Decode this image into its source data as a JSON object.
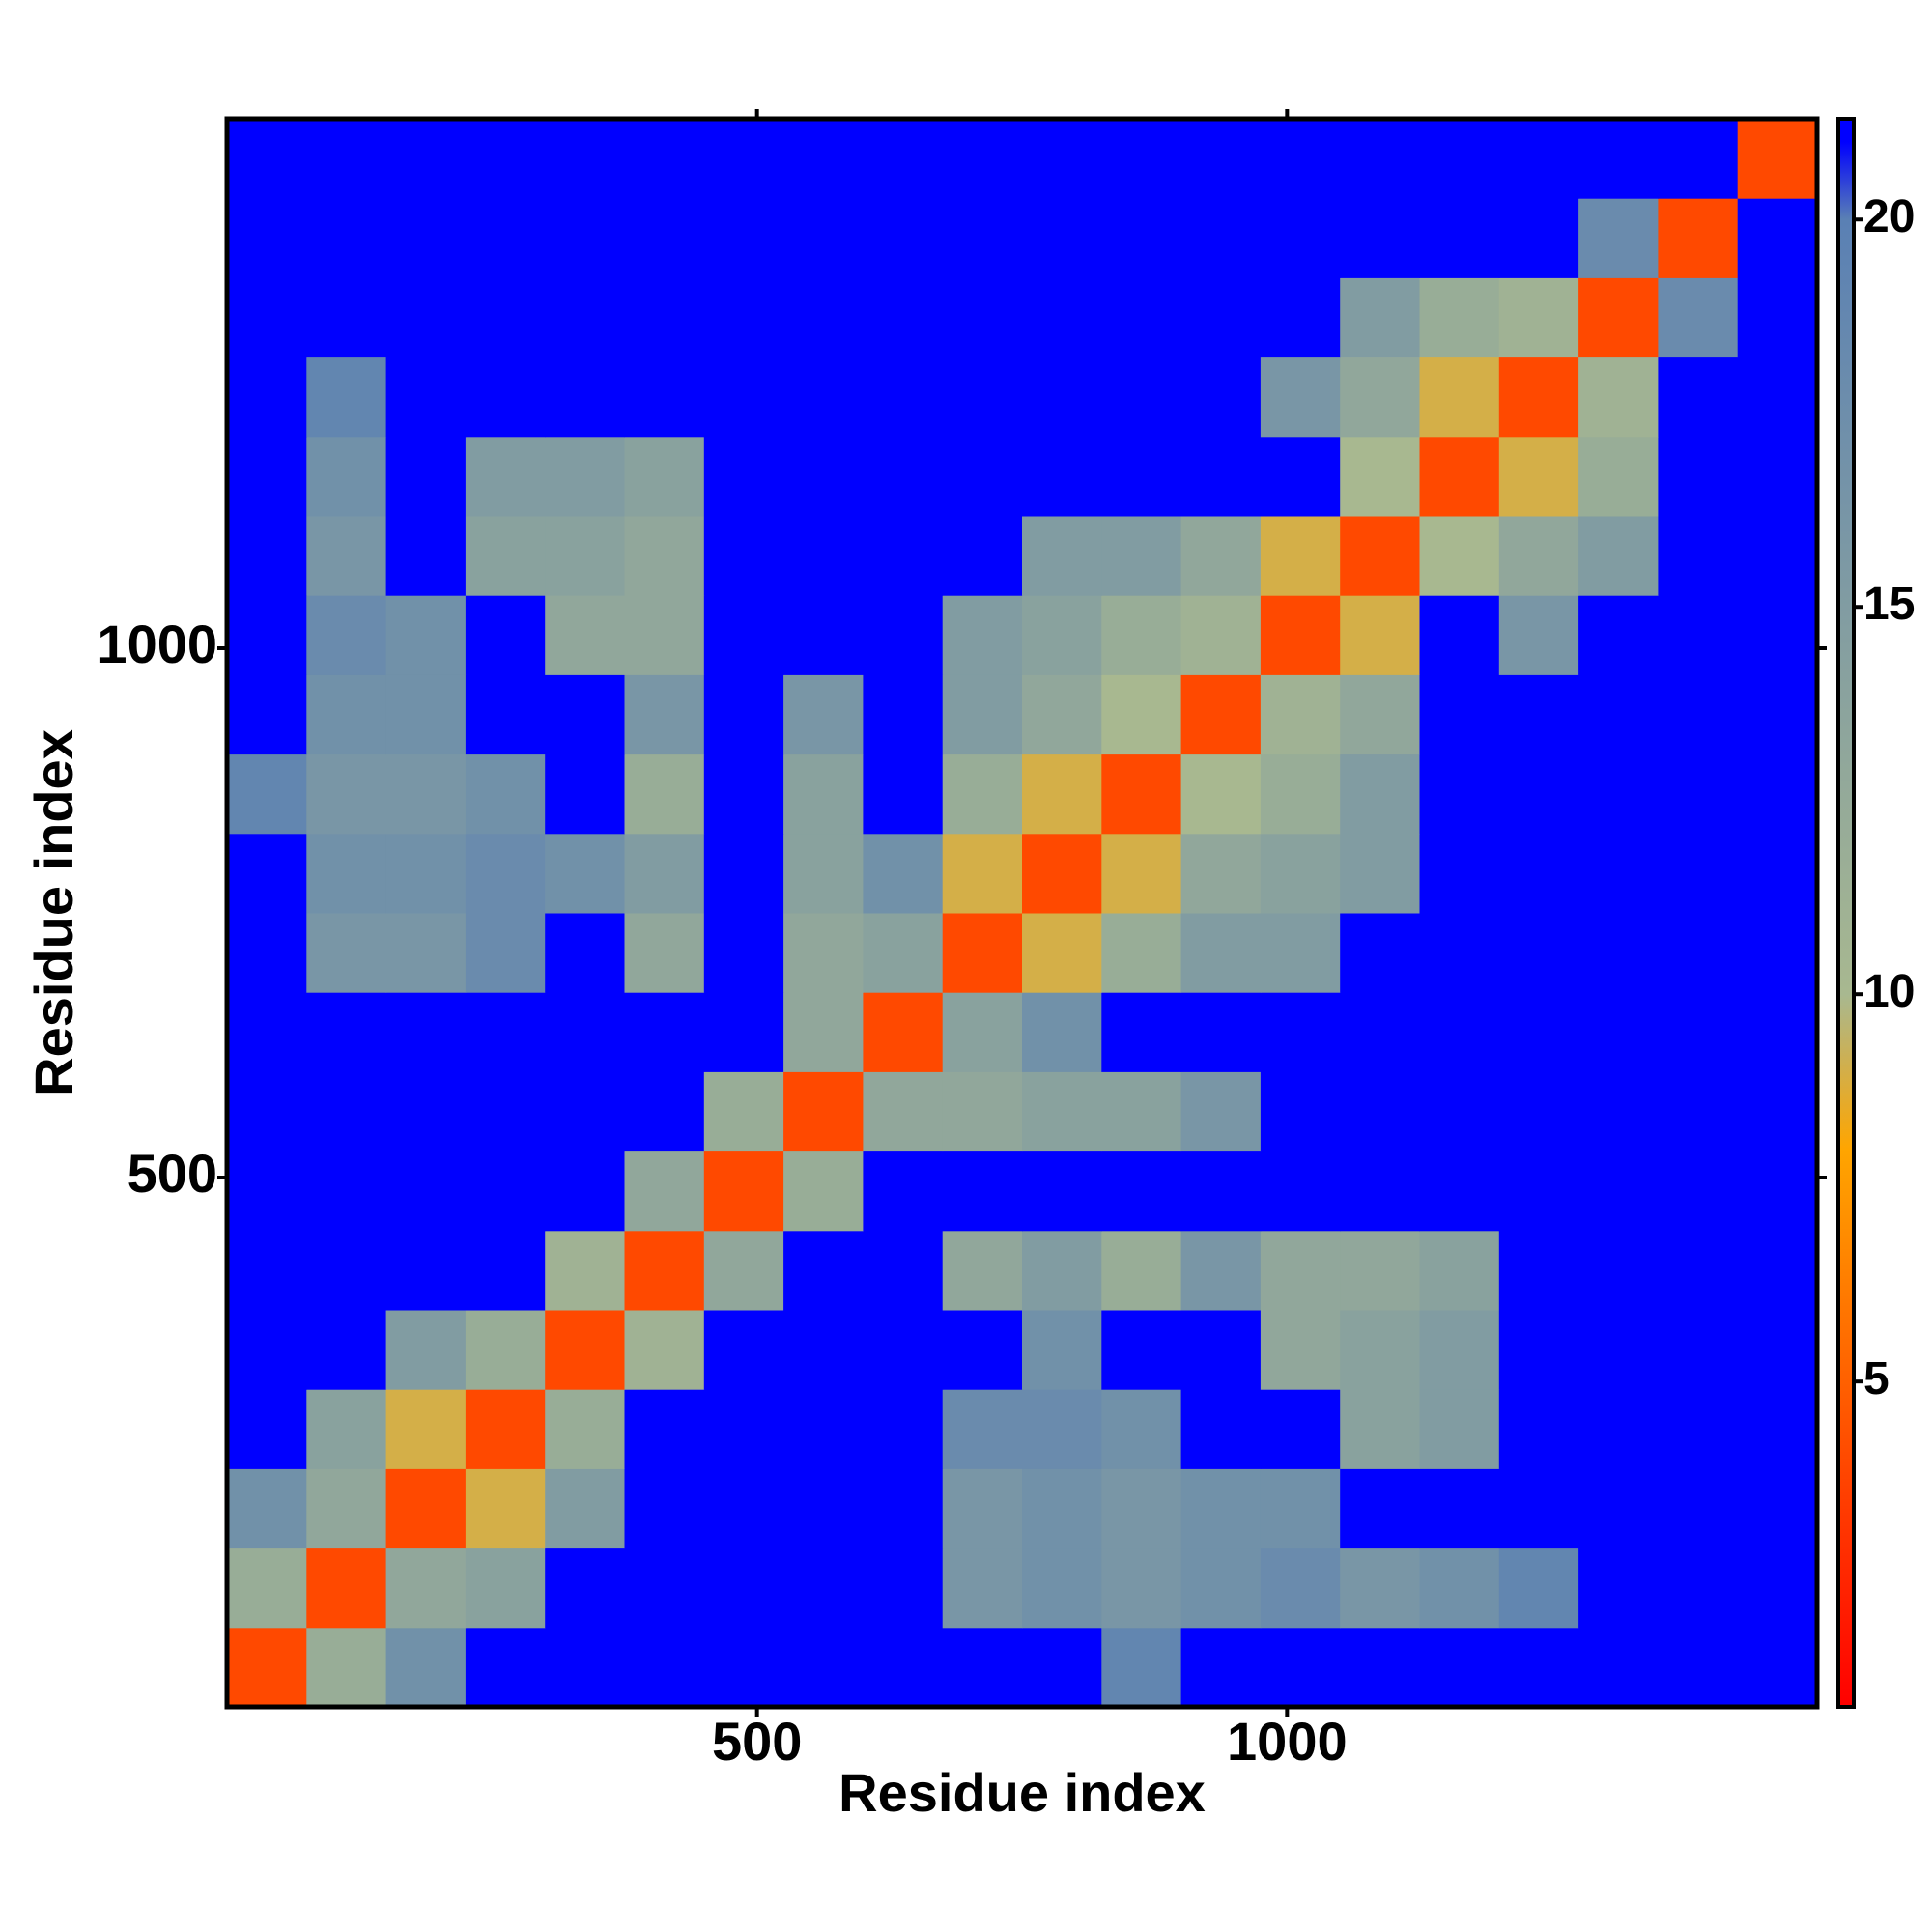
{
  "chart_data": {
    "type": "heatmap",
    "xlabel": "Residue index",
    "ylabel": "Residue index",
    "xlim": [
      0,
      1500
    ],
    "ylim": [
      0,
      1500
    ],
    "xticks": [
      500,
      1000
    ],
    "yticks": [
      500,
      1000
    ],
    "xbins": [
      0,
      75,
      150,
      225,
      300,
      375,
      450,
      525,
      600,
      675,
      750,
      825,
      900,
      975,
      1050,
      1125,
      1200,
      1275,
      1350,
      1425,
      1500
    ],
    "ybins": [
      0,
      75,
      150,
      225,
      300,
      375,
      450,
      525,
      600,
      675,
      750,
      825,
      900,
      975,
      1050,
      1125,
      1200,
      1275,
      1350,
      1425,
      1500
    ],
    "matrix": [
      [
        4,
        12,
        17,
        21,
        21,
        21,
        21,
        21,
        21,
        21,
        21,
        19,
        21,
        21,
        21,
        21,
        21,
        21,
        21,
        21
      ],
      [
        12,
        4,
        13,
        14,
        21,
        21,
        21,
        21,
        21,
        16,
        17,
        16,
        17,
        18,
        16,
        17,
        19,
        21,
        21,
        21
      ],
      [
        17,
        13,
        4,
        9,
        15,
        21,
        21,
        21,
        21,
        16,
        17,
        16,
        17,
        17,
        21,
        21,
        21,
        21,
        21,
        21
      ],
      [
        21,
        14,
        9,
        4,
        12,
        21,
        21,
        21,
        21,
        18,
        18,
        17,
        21,
        21,
        14,
        15,
        21,
        21,
        21,
        21
      ],
      [
        21,
        21,
        15,
        12,
        4,
        11,
        21,
        21,
        21,
        21,
        17,
        21,
        21,
        13,
        14,
        15,
        21,
        21,
        21,
        21
      ],
      [
        21,
        21,
        21,
        21,
        11,
        4,
        13,
        21,
        21,
        13,
        15,
        12,
        16,
        13,
        13,
        14,
        21,
        21,
        21,
        21
      ],
      [
        21,
        21,
        21,
        21,
        21,
        13,
        4,
        12,
        21,
        21,
        21,
        21,
        21,
        21,
        21,
        21,
        21,
        21,
        21,
        21
      ],
      [
        21,
        21,
        21,
        21,
        21,
        21,
        12,
        4,
        13,
        13,
        14,
        14,
        16,
        21,
        21,
        21,
        21,
        21,
        21,
        21
      ],
      [
        21,
        21,
        21,
        21,
        21,
        21,
        21,
        13,
        4,
        14,
        17,
        21,
        21,
        21,
        21,
        21,
        21,
        21,
        21,
        21
      ],
      [
        21,
        16,
        16,
        18,
        21,
        13,
        21,
        13,
        14,
        4,
        9,
        12,
        15,
        15,
        21,
        21,
        21,
        21,
        21,
        21
      ],
      [
        21,
        17,
        17,
        18,
        17,
        15,
        21,
        14,
        17,
        9,
        4,
        9,
        13,
        14,
        15,
        21,
        21,
        21,
        21,
        21
      ],
      [
        19,
        16,
        16,
        17,
        21,
        12,
        21,
        14,
        21,
        12,
        9,
        4,
        10,
        12,
        15,
        21,
        21,
        21,
        21,
        21
      ],
      [
        21,
        17,
        17,
        21,
        21,
        16,
        21,
        16,
        21,
        15,
        13,
        10,
        4,
        11,
        13,
        21,
        21,
        21,
        21,
        21
      ],
      [
        21,
        18,
        17,
        21,
        13,
        13,
        21,
        21,
        21,
        15,
        14,
        12,
        11,
        4,
        9,
        21,
        16,
        21,
        21,
        21
      ],
      [
        21,
        16,
        21,
        14,
        14,
        13,
        21,
        21,
        21,
        21,
        15,
        15,
        13,
        9,
        4,
        10,
        13,
        15,
        21,
        21
      ],
      [
        21,
        17,
        21,
        15,
        15,
        14,
        21,
        21,
        21,
        21,
        21,
        21,
        21,
        21,
        10,
        4,
        9,
        12,
        21,
        21
      ],
      [
        21,
        19,
        21,
        21,
        21,
        21,
        21,
        21,
        21,
        21,
        21,
        21,
        21,
        16,
        13,
        9,
        4,
        11,
        21,
        21
      ],
      [
        21,
        21,
        21,
        21,
        21,
        21,
        21,
        21,
        21,
        21,
        21,
        21,
        21,
        21,
        15,
        12,
        11,
        4,
        18,
        21
      ],
      [
        21,
        21,
        21,
        21,
        21,
        21,
        21,
        21,
        21,
        21,
        21,
        21,
        21,
        21,
        21,
        21,
        21,
        18,
        4,
        21
      ],
      [
        21,
        21,
        21,
        21,
        21,
        21,
        21,
        21,
        21,
        21,
        21,
        21,
        21,
        21,
        21,
        21,
        21,
        21,
        21,
        4
      ]
    ],
    "colorscale": [
      [
        0.8,
        "#ff0000"
      ],
      [
        8,
        "#ffa500"
      ],
      [
        10,
        "#a8b890"
      ],
      [
        20,
        "#5a80b4"
      ],
      [
        21,
        "#0000ff"
      ]
    ],
    "zlim": [
      0.8,
      21.3
    ],
    "zticks": [
      5,
      10,
      15,
      20
    ]
  }
}
